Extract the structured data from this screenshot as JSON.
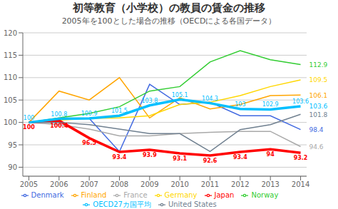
{
  "chart_data": {
    "type": "line",
    "title": "初等教育（小学校）の教員の賃金の推移",
    "subtitle": "2005年を100とした場合の推移（OECDによる各国データ）",
    "x": [
      2005,
      2006,
      2007,
      2008,
      2009,
      2010,
      2011,
      2012,
      2013,
      2014
    ],
    "xlim": [
      2004.8,
      2014.2
    ],
    "xticks": [
      2005,
      2006,
      2007,
      2008,
      2009,
      2010,
      2011,
      2012,
      2013,
      2014
    ],
    "ylim": [
      88,
      120
    ],
    "yticks": [
      90,
      95,
      100,
      105,
      110,
      115,
      120
    ],
    "grid": true,
    "legend": "bottom",
    "series": [
      {
        "name": "Denmark",
        "color": "#4169E1",
        "values": [
          100,
          100.8,
          100.9,
          93.5,
          108.5,
          104.0,
          104.5,
          101.5,
          101.5,
          98.4
        ]
      },
      {
        "name": "Finland",
        "color": "#FFA500",
        "values": [
          100,
          107.0,
          105.0,
          110.0,
          101.0,
          105.5,
          103.0,
          104.0,
          106.0,
          106.1
        ]
      },
      {
        "name": "France",
        "color": "#A9A9A9",
        "values": [
          100,
          99.5,
          98.5,
          97.0,
          97.0,
          97.5,
          97.8,
          98.0,
          98.0,
          94.6
        ]
      },
      {
        "name": "Germany",
        "color": "#FFD700",
        "values": [
          100,
          100.5,
          100.9,
          101.0,
          101.5,
          104.0,
          104.5,
          106.0,
          108.0,
          109.5
        ]
      },
      {
        "name": "Japan",
        "color": "#FF0000",
        "data_labels": true,
        "values": [
          100,
          100.4,
          96.5,
          93.4,
          93.9,
          93.1,
          92.6,
          93.4,
          94.0,
          93.2
        ]
      },
      {
        "name": "Norway",
        "color": "#32CD32",
        "values": [
          100,
          101.0,
          102.0,
          103.5,
          107.0,
          108.0,
          113.5,
          116.0,
          114.0,
          112.9
        ]
      },
      {
        "name": "United States",
        "color": "#708090",
        "values": [
          100,
          100.0,
          99.5,
          98.5,
          97.5,
          97.5,
          93.5,
          98.4,
          99.5,
          101.8
        ]
      },
      {
        "name": "OECD27カ国平均",
        "color": "#00BFFF",
        "data_labels": true,
        "values": [
          100,
          100.8,
          100.9,
          101.5,
          103.8,
          105.1,
          104.3,
          103.0,
          102.9,
          103.6
        ]
      }
    ],
    "annotations": [
      {
        "x": 2014,
        "y": 112.9,
        "text": "112.9",
        "color": "#32CD32"
      },
      {
        "x": 2014,
        "y": 109.5,
        "text": "109.5",
        "color": "#FFD700"
      },
      {
        "x": 2014,
        "y": 106.1,
        "text": "106.1",
        "color": "#FFA500"
      },
      {
        "x": 2014,
        "y": 103.6,
        "text": "103.6",
        "color": "#00BFFF"
      },
      {
        "x": 2014,
        "y": 101.8,
        "text": "101.8",
        "color": "#708090"
      },
      {
        "x": 2014,
        "y": 98.4,
        "text": "98.4",
        "color": "#4169E1"
      },
      {
        "x": 2014,
        "y": 94.6,
        "text": "94.6",
        "color": "#A9A9A9"
      }
    ]
  }
}
